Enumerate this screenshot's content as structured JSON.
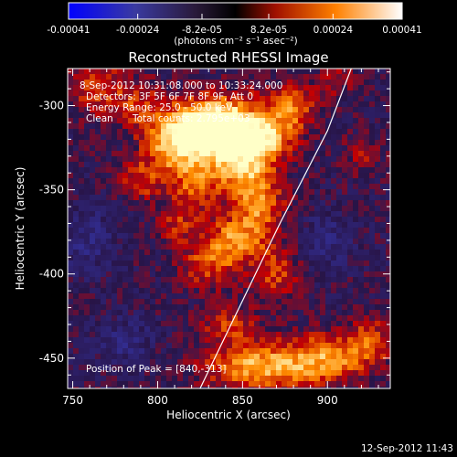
{
  "chart_data": {
    "type": "heatmap",
    "title": "Reconstructed RHESSI Image",
    "xlabel": "Heliocentric X (arcsec)",
    "ylabel": "Heliocentric Y (arcsec)",
    "xlim": [
      747,
      937
    ],
    "ylim": [
      -468,
      -278
    ],
    "x_ticks": [
      "750",
      "800",
      "850",
      "900"
    ],
    "y_ticks": [
      "-300",
      "-350",
      "-400",
      "-450"
    ],
    "x_tick_values": [
      750,
      800,
      850,
      900
    ],
    "y_tick_values": [
      -300,
      -350,
      -400,
      -450
    ],
    "colorbar": {
      "ticks": [
        "-0.00041",
        "-0.00024",
        "-8.2e-05",
        "8.2e-05",
        "0.00024",
        "0.00041"
      ],
      "tick_values": [
        -0.00041,
        -0.00024,
        -8.2e-05,
        8.2e-05,
        0.00024,
        0.00041
      ],
      "range": [
        -0.00041,
        0.00041
      ],
      "units_label": "(photons cm⁻² s⁻¹ asec⁻²)"
    },
    "annotations": {
      "time_range": "8-Sep-2012 10:31:08.000 to 10:33:24.000",
      "detectors": "Detectors: 3F 5F 6F 7F 8F 9F, Att 0",
      "energy": "Energy Range: 25.0 - 50.0 keV",
      "clean": "Clean",
      "total_counts": "Total counts: 2.795e+03",
      "peak": "Position of Peak = [840,-313]"
    },
    "peak_position": [
      840,
      -313
    ],
    "limb_curve": {
      "x": [
        825,
        848,
        872,
        900,
        914
      ],
      "y": [
        -468,
        -420,
        -370,
        -315,
        -278
      ]
    },
    "emission_blobs": [
      {
        "x": 840,
        "y": -313,
        "sx": 16,
        "sy": 13,
        "a": 1.0
      },
      {
        "x": 822,
        "y": -315,
        "sx": 14,
        "sy": 12,
        "a": 0.75
      },
      {
        "x": 808,
        "y": -325,
        "sx": 12,
        "sy": 12,
        "a": 0.6
      },
      {
        "x": 850,
        "y": -335,
        "sx": 13,
        "sy": 13,
        "a": 0.7
      },
      {
        "x": 865,
        "y": -318,
        "sx": 12,
        "sy": 10,
        "a": 0.6
      },
      {
        "x": 880,
        "y": -300,
        "sx": 10,
        "sy": 10,
        "a": 0.55
      },
      {
        "x": 860,
        "y": -360,
        "sx": 10,
        "sy": 13,
        "a": 0.6
      },
      {
        "x": 845,
        "y": -380,
        "sx": 12,
        "sy": 10,
        "a": 0.65
      },
      {
        "x": 822,
        "y": -348,
        "sx": 10,
        "sy": 10,
        "a": 0.5
      },
      {
        "x": 790,
        "y": -345,
        "sx": 9,
        "sy": 9,
        "a": 0.4
      },
      {
        "x": 812,
        "y": -370,
        "sx": 9,
        "sy": 9,
        "a": 0.35
      },
      {
        "x": 830,
        "y": -395,
        "sx": 12,
        "sy": 10,
        "a": 0.45
      },
      {
        "x": 870,
        "y": -400,
        "sx": 10,
        "sy": 12,
        "a": 0.45
      },
      {
        "x": 860,
        "y": -455,
        "sx": 22,
        "sy": 10,
        "a": 0.8
      },
      {
        "x": 900,
        "y": -450,
        "sx": 16,
        "sy": 10,
        "a": 0.65
      },
      {
        "x": 925,
        "y": -440,
        "sx": 10,
        "sy": 10,
        "a": 0.45
      },
      {
        "x": 842,
        "y": -430,
        "sx": 12,
        "sy": 8,
        "a": 0.4
      },
      {
        "x": 765,
        "y": -290,
        "sx": 12,
        "sy": 12,
        "a": 0.45
      },
      {
        "x": 790,
        "y": -300,
        "sx": 10,
        "sy": 10,
        "a": 0.4
      },
      {
        "x": 905,
        "y": -285,
        "sx": 8,
        "sy": 8,
        "a": 0.3
      },
      {
        "x": 920,
        "y": -330,
        "sx": 8,
        "sy": 8,
        "a": 0.25
      },
      {
        "x": 780,
        "y": -440,
        "sx": 12,
        "sy": 10,
        "a": -0.3
      },
      {
        "x": 900,
        "y": -380,
        "sx": 12,
        "sy": 12,
        "a": -0.25
      },
      {
        "x": 760,
        "y": -380,
        "sx": 12,
        "sy": 14,
        "a": -0.3
      }
    ],
    "grid": false
  },
  "footer": {
    "timestamp": "12-Sep-2012 11:43"
  }
}
